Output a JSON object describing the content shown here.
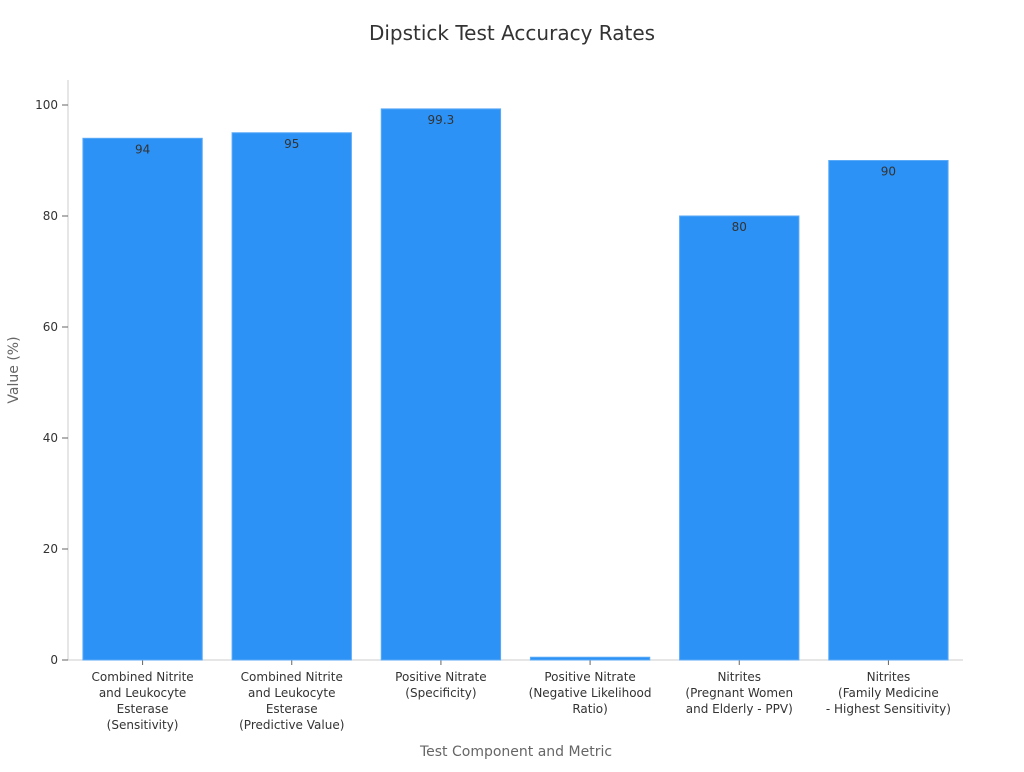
{
  "chart_data": {
    "type": "bar",
    "title": "Dipstick Test Accuracy Rates",
    "xlabel": "Test Component and Metric",
    "ylabel": "Value (%)",
    "ylim": [
      0,
      100
    ],
    "yticks": [
      0,
      20,
      40,
      60,
      80,
      100
    ],
    "grid": false,
    "categories": [
      [
        "Combined Nitrite",
        "and Leukocyte",
        "Esterase",
        "(Sensitivity)"
      ],
      [
        "Combined Nitrite",
        "and Leukocyte",
        "Esterase",
        "(Predictive Value)"
      ],
      [
        "Positive Nitrate",
        "(Specificity)"
      ],
      [
        "Positive Nitrate",
        "(Negative Likelihood",
        "Ratio)"
      ],
      [
        "Nitrites",
        "(Pregnant Women",
        "and Elderly - PPV)"
      ],
      [
        "Nitrites",
        "(Family Medicine",
        "- Highest Sensitivity)"
      ]
    ],
    "values": [
      94,
      95,
      99.3,
      0.5,
      80,
      90
    ],
    "data_labels": [
      "94",
      "95",
      "99.3",
      "",
      "80",
      "90"
    ],
    "bar_color": "#2d92f5"
  }
}
